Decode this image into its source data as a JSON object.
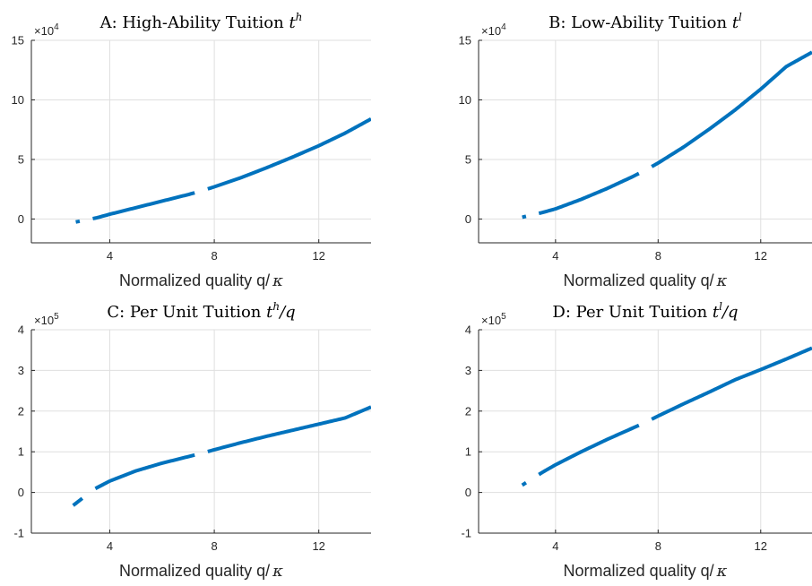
{
  "colors": {
    "line": "#0072BD",
    "grid": "#DFDFDF",
    "axis": "#262626"
  },
  "chart_data": [
    {
      "type": "line",
      "title": "A: High-Ability Tuition",
      "title_math": "t",
      "title_sup": "h",
      "title_tail": "",
      "xlabel": "Normalized quality q/",
      "xlabel_symbol": "κ",
      "xlim": [
        1,
        14
      ],
      "ylim": [
        -2,
        15
      ],
      "xticks": [
        4,
        8,
        12
      ],
      "yticks": [
        0,
        5,
        10,
        15
      ],
      "y_exponent_base": "×10",
      "y_exponent": "4",
      "grid": true,
      "series": [
        {
          "x": [
            2.7,
            3.5,
            4,
            5,
            6,
            7,
            7.5,
            8,
            9,
            10,
            11,
            12,
            13,
            14
          ],
          "values": [
            -0.25,
            0.1,
            0.4,
            0.95,
            1.5,
            2.05,
            2.35,
            2.7,
            3.45,
            4.3,
            5.2,
            6.15,
            7.2,
            8.4
          ],
          "gaps_after_x": [
            3.1,
            7.5
          ]
        }
      ]
    },
    {
      "type": "line",
      "title": "B: Low-Ability Tuition",
      "title_math": "t",
      "title_sup": "l",
      "title_tail": "",
      "xlabel": "Normalized quality q/",
      "xlabel_symbol": "κ",
      "xlim": [
        1,
        14
      ],
      "ylim": [
        -2,
        15
      ],
      "xticks": [
        4,
        8,
        12
      ],
      "yticks": [
        0,
        5,
        10,
        15
      ],
      "y_exponent_base": "×10",
      "y_exponent": "4",
      "grid": true,
      "series": [
        {
          "x": [
            2.7,
            3.5,
            4,
            5,
            6,
            7,
            7.5,
            8,
            9,
            10,
            11,
            12,
            13,
            14
          ],
          "values": [
            0.15,
            0.55,
            0.85,
            1.65,
            2.55,
            3.55,
            4.1,
            4.7,
            6.05,
            7.55,
            9.15,
            10.9,
            12.8,
            14.0
          ],
          "gaps_after_x": [
            3.1,
            7.5
          ]
        }
      ]
    },
    {
      "type": "line",
      "title": "C: Per Unit Tuition",
      "title_math": "t",
      "title_sup": "h",
      "title_tail": "/q",
      "xlabel": "Normalized quality q/",
      "xlabel_symbol": "κ",
      "xlim": [
        1,
        14
      ],
      "ylim": [
        -1,
        4
      ],
      "xticks": [
        4,
        8,
        12
      ],
      "yticks": [
        -1,
        0,
        1,
        2,
        3,
        4
      ],
      "y_exponent_base": "×10",
      "y_exponent": "5",
      "grid": true,
      "series": [
        {
          "x": [
            2.6,
            3,
            3.4,
            4,
            5,
            6,
            7,
            7.5,
            8,
            9,
            10,
            11,
            12,
            13,
            14
          ],
          "values": [
            -0.32,
            -0.12,
            0.08,
            0.28,
            0.53,
            0.72,
            0.88,
            0.96,
            1.05,
            1.22,
            1.38,
            1.53,
            1.68,
            1.83,
            2.1
          ],
          "gaps_after_x": [
            3.2,
            7.5
          ]
        }
      ]
    },
    {
      "type": "line",
      "title": "D: Per Unit Tuition",
      "title_math": "t",
      "title_sup": "l",
      "title_tail": "/q",
      "xlabel": "Normalized quality q/",
      "xlabel_symbol": "κ",
      "xlim": [
        1,
        14
      ],
      "ylim": [
        -1,
        4
      ],
      "xticks": [
        4,
        8,
        12
      ],
      "yticks": [
        -1,
        0,
        1,
        2,
        3,
        4
      ],
      "y_exponent_base": "×10",
      "y_exponent": "5",
      "grid": true,
      "series": [
        {
          "x": [
            2.7,
            3.5,
            4,
            5,
            6,
            7,
            7.5,
            8,
            9,
            10,
            11,
            12,
            13,
            14
          ],
          "values": [
            0.18,
            0.5,
            0.68,
            1.0,
            1.3,
            1.58,
            1.72,
            1.88,
            2.18,
            2.47,
            2.77,
            3.02,
            3.28,
            3.55
          ],
          "gaps_after_x": [
            3.1,
            7.5
          ]
        }
      ]
    }
  ]
}
